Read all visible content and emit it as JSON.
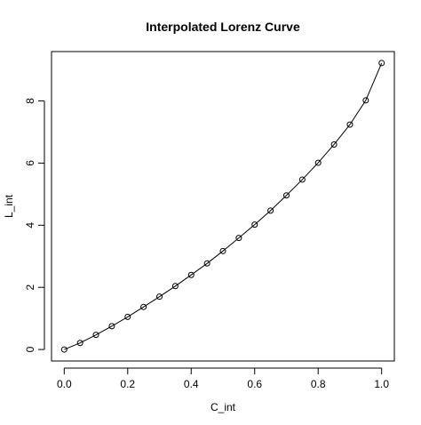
{
  "chart_data": {
    "type": "line",
    "title": "Interpolated Lorenz Curve",
    "xlabel": "C_int",
    "ylabel": "L_int",
    "xlim": [
      -0.04,
      1.04
    ],
    "ylim": [
      -0.37,
      9.59
    ],
    "x_ticks": [
      0.0,
      0.2,
      0.4,
      0.6,
      0.8,
      1.0
    ],
    "x_tick_labels": [
      "0.0",
      "0.2",
      "0.4",
      "0.6",
      "0.8",
      "1.0"
    ],
    "y_ticks": [
      0,
      2,
      4,
      6,
      8
    ],
    "y_tick_labels": [
      "0",
      "2",
      "4",
      "6",
      "8"
    ],
    "grid": false,
    "legend": "none",
    "line_style": "line with open circle markers",
    "series": [
      {
        "x": [
          0.0,
          0.05,
          0.1,
          0.15,
          0.2,
          0.25,
          0.3,
          0.35,
          0.4,
          0.45,
          0.5,
          0.55,
          0.6,
          0.65,
          0.7,
          0.75,
          0.8,
          0.85,
          0.9,
          0.95,
          1.0
        ],
        "y": [
          0.0,
          0.21,
          0.47,
          0.75,
          1.05,
          1.37,
          1.7,
          2.04,
          2.4,
          2.77,
          3.17,
          3.59,
          4.02,
          4.47,
          4.96,
          5.47,
          6.01,
          6.6,
          7.24,
          8.02,
          9.22
        ]
      }
    ]
  }
}
